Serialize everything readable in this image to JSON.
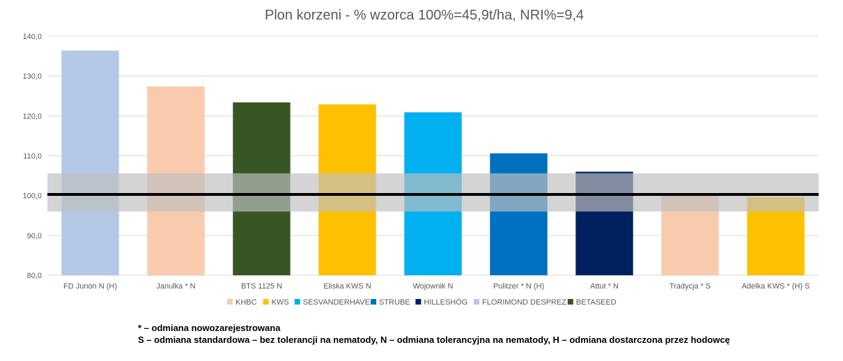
{
  "chart_data": {
    "type": "bar",
    "title": "Plon korzeni - % wzorca 100%=45,9t/ha, NRI%=9,4",
    "xlabel": "",
    "ylabel": "",
    "ylim": [
      80,
      140
    ],
    "yticks": [
      "80,0",
      "90,0",
      "100,0",
      "110,0",
      "120,0",
      "130,0",
      "140,0"
    ],
    "ytick_values": [
      80,
      90,
      100,
      110,
      120,
      130,
      140
    ],
    "grid": true,
    "legend_position": "bottom",
    "categories": [
      "FD Junon N (H)",
      "Janulka * N",
      "BTS 1125 N",
      "Eliska KWS N",
      "Wojownik N",
      "Pulitzer * N (H)",
      "Attut * N",
      "Tradycja * S",
      "Adelka KWS * (H) S"
    ],
    "values": [
      136.4,
      127.4,
      123.4,
      122.9,
      120.9,
      110.6,
      106.0,
      100.3,
      99.6
    ],
    "bar_breeders": [
      "FLORIMOND DESPREZ",
      "KHBC",
      "BETASEED",
      "KWS",
      "SESVANDERHAVE",
      "STRUBE",
      "HILLESHÖG",
      "KHBC",
      "KWS"
    ],
    "legend": [
      {
        "name": "KHBC",
        "color": "#f8cbad"
      },
      {
        "name": "KWS",
        "color": "#ffc000"
      },
      {
        "name": "SESVANDERHAVE",
        "color": "#00b0f0"
      },
      {
        "name": "STRUBE",
        "color": "#0070c0"
      },
      {
        "name": "HILLESHÖG",
        "color": "#002060"
      },
      {
        "name": "FLORIMOND DESPREZ",
        "color": "#b4c7e7"
      },
      {
        "name": "BETASEED",
        "color": "#375623"
      }
    ],
    "reference_line": 100.3,
    "nri_band": [
      96.0,
      105.6
    ]
  },
  "notes": {
    "line1": "* – odmiana nowozarejestrowana",
    "line2": "S – odmiana standardowa – bez tolerancji na nematody, N – odmiana tolerancyjna na nematody, H – odmiana dostarczona przez hodowcę"
  }
}
